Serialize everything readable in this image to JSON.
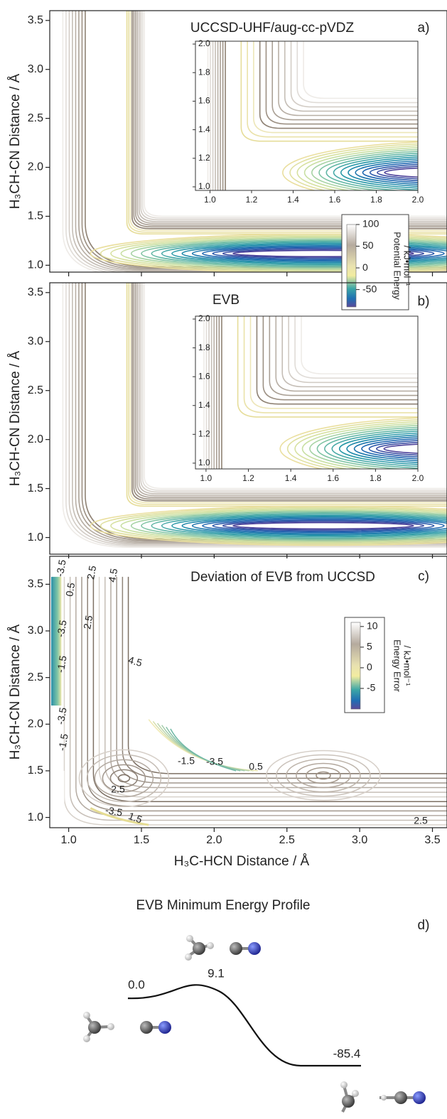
{
  "chart_data": [
    {
      "type": "contour",
      "panel": "a)",
      "title": "UCCSD-UHF/aug-cc-pVDZ",
      "ylabel": "H₃CH-CN Distance / Å",
      "xlim": [
        0.87,
        3.6
      ],
      "ylim": [
        0.93,
        3.6
      ],
      "xticks": [
        1,
        1.5,
        2,
        2.5,
        3,
        3.5
      ],
      "xtick_labels": false,
      "yticks": [
        {
          "value": 1,
          "label": "1.0"
        },
        1.5,
        {
          "value": 2,
          "label": "2.0"
        },
        2.5,
        {
          "value": 3,
          "label": "3.0"
        },
        3.5
      ],
      "inset": {
        "xlim": [
          0.93,
          2.0
        ],
        "ylim": [
          0.975,
          2.02
        ],
        "xticks": [
          {
            "value": 1,
            "label": "1.0"
          },
          1.2,
          1.4,
          1.6,
          1.8,
          {
            "value": 2,
            "label": "2.0"
          }
        ],
        "yticks": [
          {
            "value": 1,
            "label": "1.0"
          },
          1.2,
          1.4,
          1.6,
          1.8,
          {
            "value": 2,
            "label": "2.0"
          }
        ]
      },
      "colorbar": {
        "label": [
          "Potential Energy",
          "/ kJ•mol⁻¹"
        ],
        "lim": [
          -90,
          100
        ],
        "ticks": [
          100,
          50,
          0,
          -50
        ]
      }
    },
    {
      "type": "contour",
      "panel": "b)",
      "title": "EVB",
      "ylabel": "H₃CH-CN Distance / Å",
      "xlim": [
        0.87,
        3.6
      ],
      "ylim": [
        0.83,
        3.6
      ],
      "xticks": [
        1,
        1.5,
        2,
        2.5,
        3,
        3.5
      ],
      "xtick_labels": false,
      "yticks": [
        {
          "value": 1,
          "label": "1.0"
        },
        1.5,
        {
          "value": 2,
          "label": "2.0"
        },
        2.5,
        {
          "value": 3,
          "label": "3.0"
        },
        3.5
      ],
      "inset": {
        "xlim": [
          0.95,
          2.0
        ],
        "ylim": [
          0.96,
          2.02
        ],
        "xticks": [
          {
            "value": 1,
            "label": "1.0"
          },
          1.2,
          1.4,
          1.6,
          1.8,
          {
            "value": 2,
            "label": "2.0"
          }
        ],
        "yticks": [
          {
            "value": 1,
            "label": "1.0"
          },
          1.2,
          1.4,
          1.6,
          1.8,
          {
            "value": 2,
            "label": "2.0"
          }
        ]
      }
    },
    {
      "type": "deviation",
      "panel": "c)",
      "title": "Deviation of EVB from UCCSD",
      "ylabel": "H₃CH-CN Distance / Å",
      "xlabel": "H₃C-HCN Distance / Å",
      "xlim": [
        0.87,
        3.6
      ],
      "ylim": [
        0.89,
        3.8
      ],
      "xticks": [
        {
          "value": 1,
          "label": "1.0"
        },
        1.5,
        {
          "value": 2,
          "label": "2.0"
        },
        2.5,
        {
          "value": 3,
          "label": "3.0"
        },
        3.5
      ],
      "yticks": [
        {
          "value": 1,
          "label": "1.0"
        },
        1.5,
        {
          "value": 2,
          "label": "2.0"
        },
        2.5,
        {
          "value": 3,
          "label": "3.0"
        },
        3.5
      ],
      "contour_labels": [
        "-3.5",
        "0.5",
        "2.5",
        "4.5",
        "-3.5",
        "2.5",
        "-1.5",
        "4.5",
        "-3.5",
        "-1.5",
        "-1.5",
        "-3.5",
        "0.5",
        "2.5",
        "-3.5",
        "1.5",
        "2.5"
      ],
      "colorbar": {
        "label": [
          "Energy Error",
          "/ kJ•mol⁻¹"
        ],
        "lim": [
          -10,
          11
        ],
        "ticks": [
          10,
          5,
          0,
          -5
        ]
      }
    },
    {
      "type": "profile",
      "panel": "d)",
      "title": "EVB Minimum Energy Profile",
      "values": [
        0,
        9.1,
        -85.4
      ],
      "value_labels": [
        "0.0",
        "9.1",
        "-85.4"
      ]
    }
  ]
}
